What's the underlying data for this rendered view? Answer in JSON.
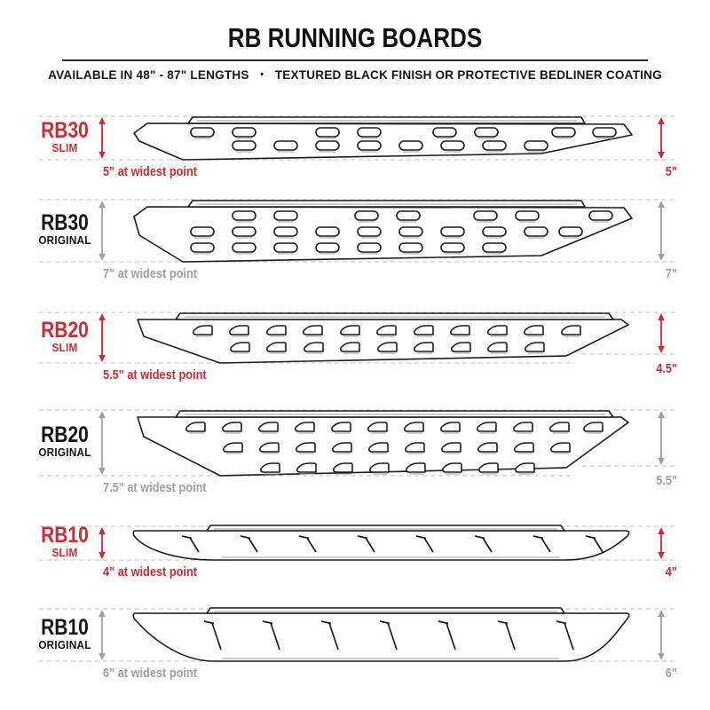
{
  "header": {
    "title": "RB RUNNING BOARDS",
    "subtitle_left": "AVAILABLE IN 48\" - 87\" LENGTHS",
    "subtitle_bullet": "•",
    "subtitle_right": "TEXTURED BLACK FINISH OR PROTECTIVE BEDLINER COATING"
  },
  "colors": {
    "accent_red": "#d2282e",
    "neutral_gray": "#9da0a3",
    "outline_dark": "#1c1c1c",
    "dash_gray": "#c9c9c9",
    "shadow_gray": "#9a9a9a"
  },
  "rows": [
    {
      "model": "RB30",
      "variant": "SLIM",
      "accent": "red",
      "left_caption": "5\" at widest point",
      "right_caption": "5\""
    },
    {
      "model": "RB30",
      "variant": "ORIGINAL",
      "accent": "gray",
      "left_caption": "7\" at widest point",
      "right_caption": "7\""
    },
    {
      "model": "RB20",
      "variant": "SLIM",
      "accent": "red",
      "left_caption": "5.5\" at widest point",
      "right_caption": "4.5\""
    },
    {
      "model": "RB20",
      "variant": "ORIGINAL",
      "accent": "gray",
      "left_caption": "7.5\" at widest point",
      "right_caption": "5.5\""
    },
    {
      "model": "RB10",
      "variant": "SLIM",
      "accent": "red",
      "left_caption": "4\" at widest point",
      "right_caption": "4\""
    },
    {
      "model": "RB10",
      "variant": "ORIGINAL",
      "accent": "gray",
      "left_caption": "6\" at widest point",
      "right_caption": "6\""
    }
  ]
}
